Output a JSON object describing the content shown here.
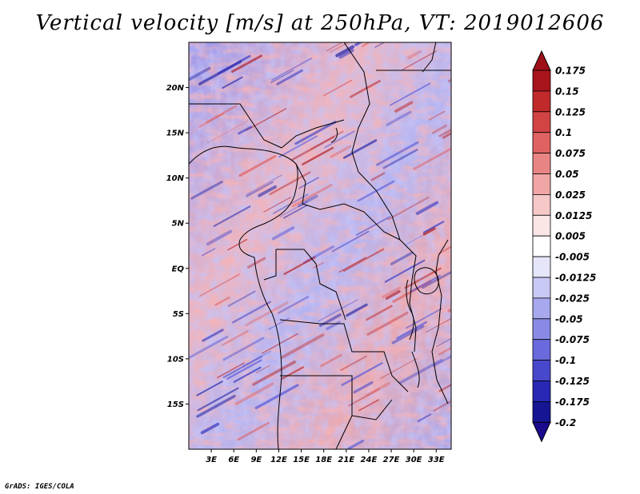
{
  "title": "Vertical velocity [m/s] at 250hPa, VT: 2019012606",
  "credit": "GrADS: IGES/COLA",
  "map": {
    "lon_range": [
      0,
      35
    ],
    "lat_range": [
      -20,
      25
    ],
    "y_ticks": [
      "20N",
      "15N",
      "10N",
      "5N",
      "EQ",
      "5S",
      "10S",
      "15S"
    ],
    "x_ticks": [
      "3E",
      "6E",
      "9E",
      "12E",
      "15E",
      "18E",
      "21E",
      "24E",
      "27E",
      "30E",
      "33E"
    ]
  },
  "colorbar": {
    "labels": [
      "0.175",
      "0.15",
      "0.125",
      "0.1",
      "0.075",
      "0.05",
      "0.025",
      "0.0125",
      "0.005",
      "-0.005",
      "-0.0125",
      "-0.025",
      "-0.05",
      "-0.075",
      "-0.1",
      "-0.125",
      "-0.175",
      "-0.2"
    ],
    "colors": [
      "#8b0a14",
      "#a8141c",
      "#c02a2a",
      "#d24444",
      "#df6262",
      "#e98484",
      "#f0a6a6",
      "#f6c8c8",
      "#fbe6e6",
      "#ffffff",
      "#e6e6fb",
      "#c8c8f4",
      "#a8a8ee",
      "#8a8ae6",
      "#6a6adc",
      "#4848cc",
      "#2828b4",
      "#161694",
      "#0a0a78"
    ],
    "top_arrow_color": "#a01018",
    "bottom_arrow_color": "#1a0a8c"
  }
}
